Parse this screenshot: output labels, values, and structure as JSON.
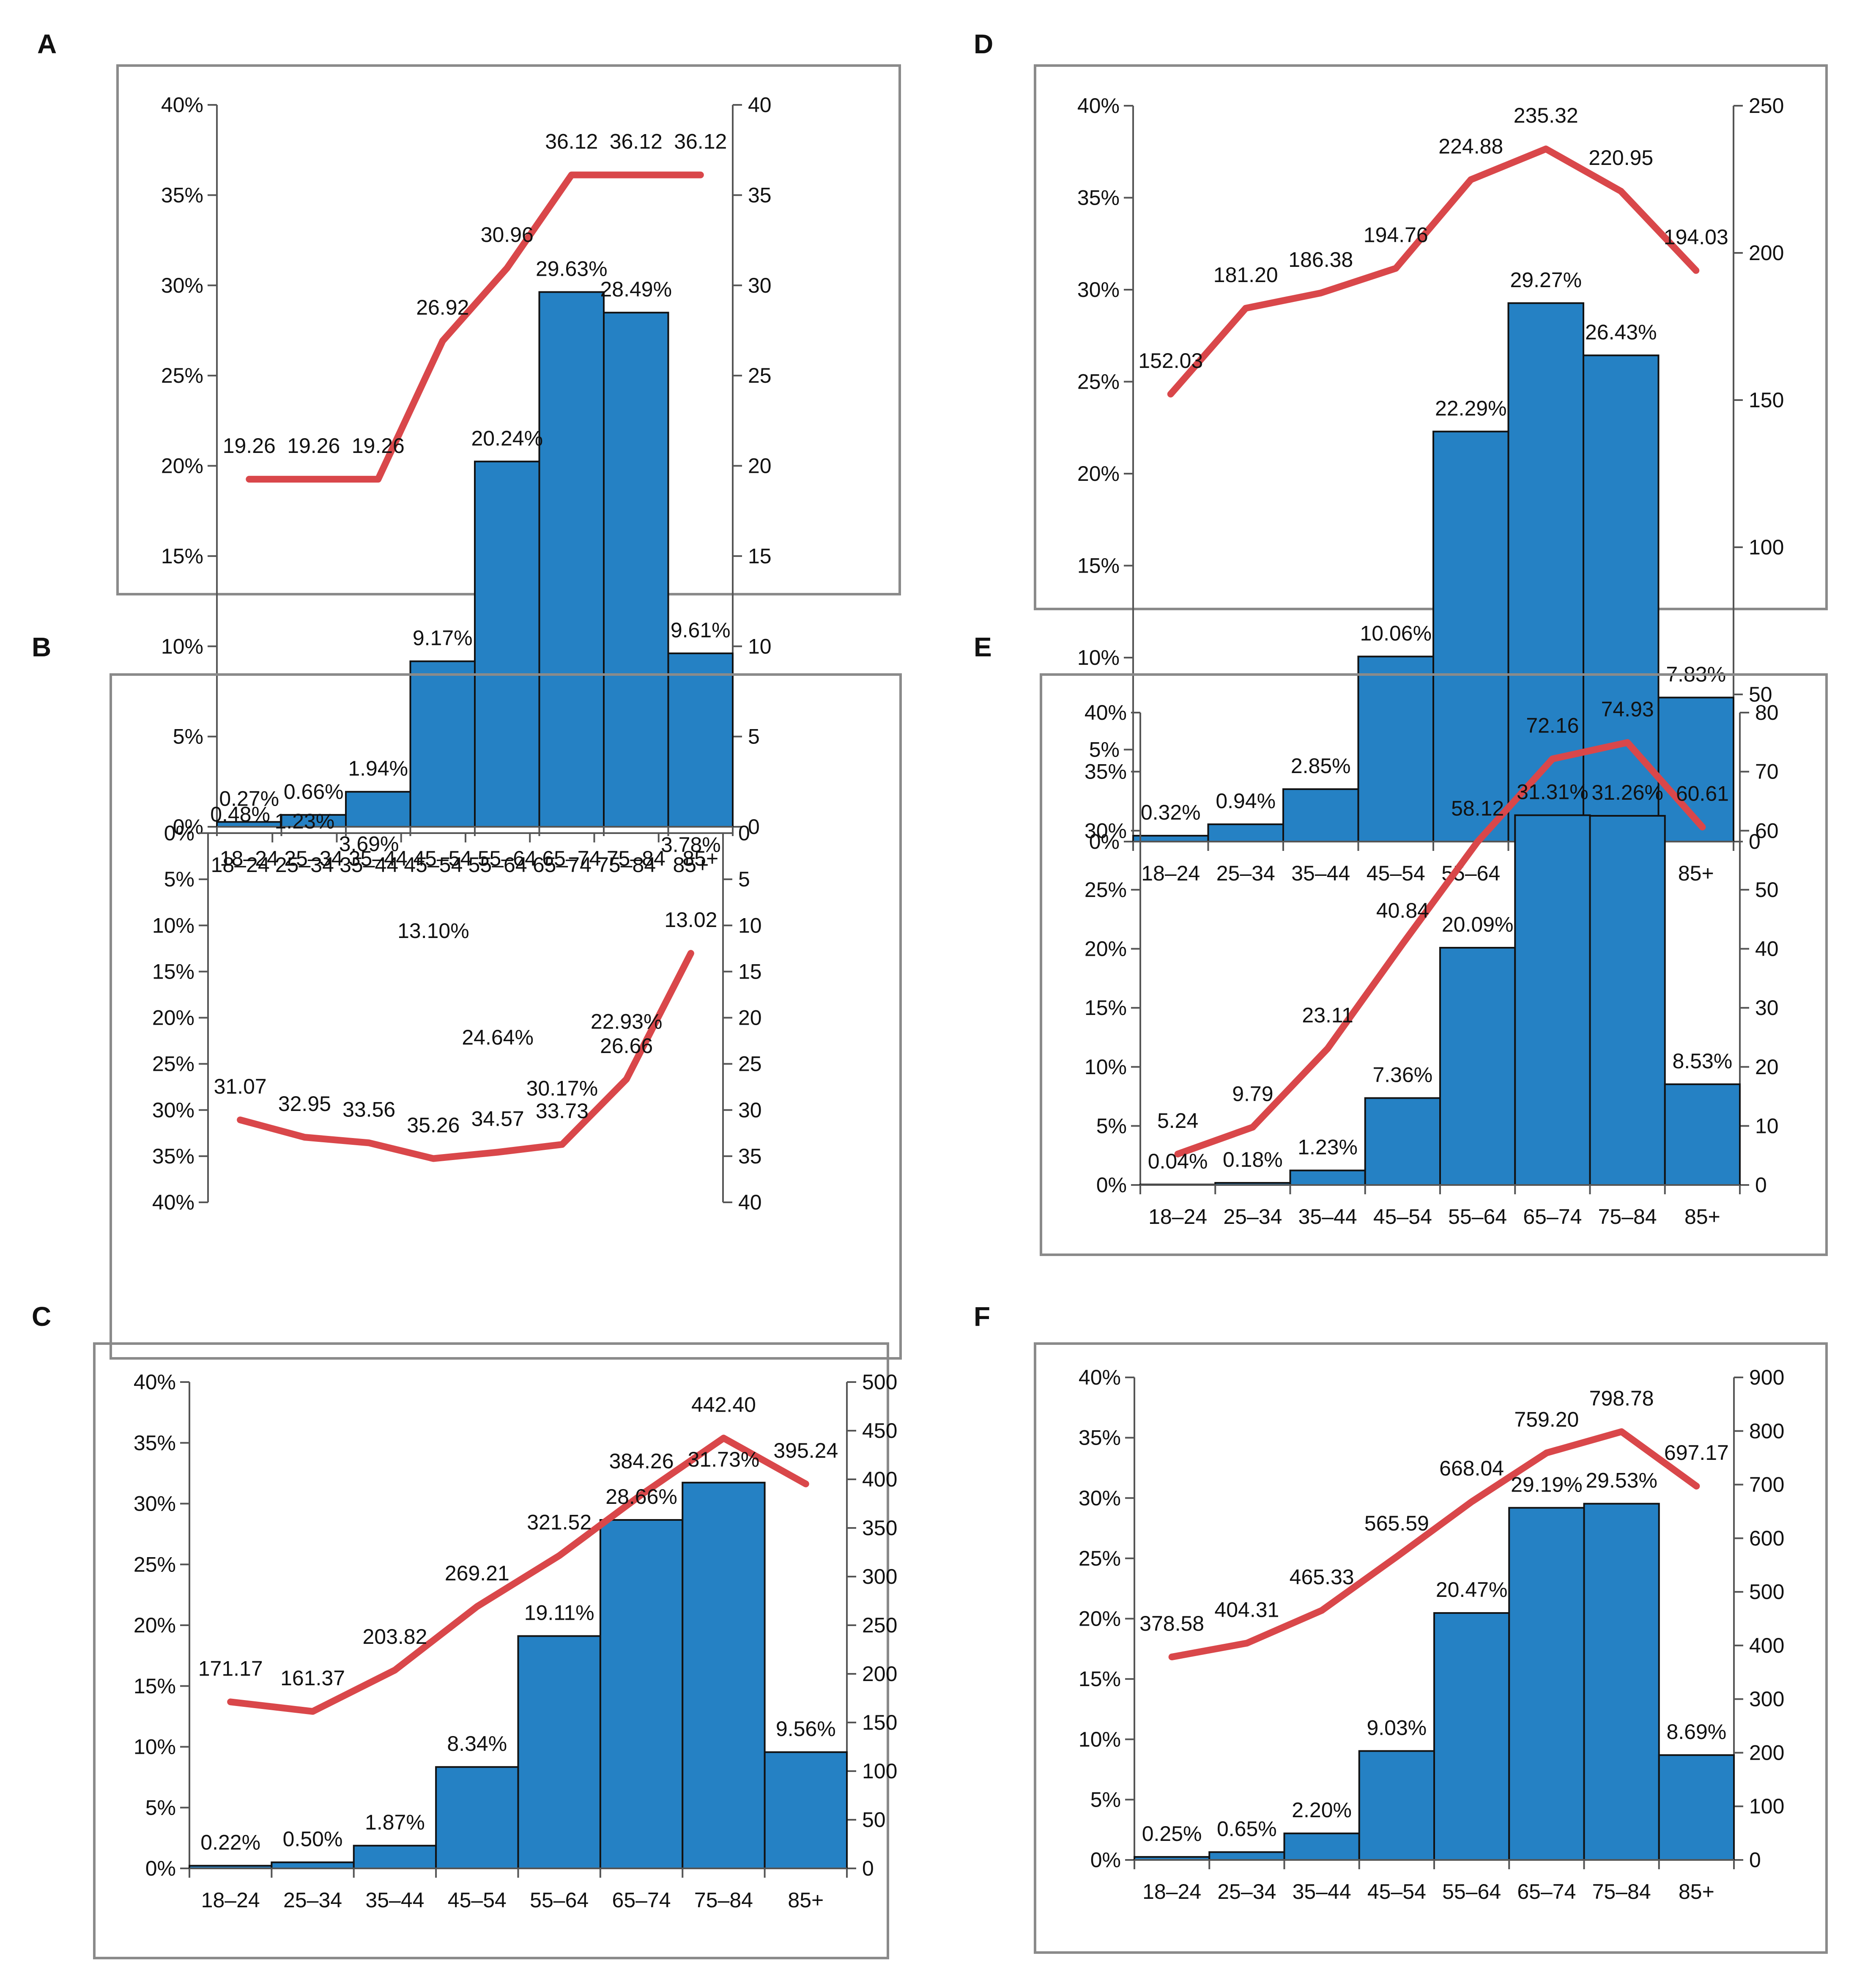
{
  "colors": {
    "bar": "#2581c4",
    "bar_stroke": "#111111",
    "line": "#d9474a",
    "frame": "#8a8a8a",
    "axis": "#555555",
    "text": "#111111"
  },
  "chart_data": [
    {
      "panel": "A",
      "type": "bar",
      "categories": [
        "18–24",
        "25–34",
        "35–44",
        "45–54",
        "55–64",
        "65–74",
        "75–84",
        "85+"
      ],
      "series": [
        {
          "name": "share",
          "axis": "left",
          "type": "bar",
          "values": [
            0.27,
            0.66,
            1.94,
            9.17,
            20.24,
            29.63,
            28.49,
            9.61
          ],
          "labels": [
            "0.27%",
            "0.66%",
            "1.94%",
            "9.17%",
            "20.24%",
            "29.63%",
            "28.49%",
            "9.61%"
          ]
        },
        {
          "name": "rate",
          "axis": "right",
          "type": "line",
          "values": [
            19.26,
            19.26,
            19.26,
            26.92,
            30.96,
            36.12,
            36.12,
            36.12
          ],
          "labels": [
            "19.26",
            "19.26",
            "19.26",
            "26.92",
            "30.96",
            "36.12",
            "36.12",
            "36.12"
          ]
        }
      ],
      "y_left": {
        "ylim": [
          0,
          40
        ],
        "ticks": [
          "0%",
          "5%",
          "10%",
          "15%",
          "20%",
          "25%",
          "30%",
          "35%",
          "40%"
        ]
      },
      "y_right": {
        "ylim": [
          0,
          40
        ],
        "ticks": [
          "0",
          "5",
          "10",
          "15",
          "20",
          "25",
          "30",
          "35",
          "40"
        ]
      },
      "grid": false
    },
    {
      "panel": "B",
      "type": "bar",
      "categories": [
        "18–24",
        "25–34",
        "35–44",
        "45–54",
        "55–64",
        "65–74",
        "75–84",
        "85+"
      ],
      "series": [
        {
          "name": "share",
          "axis": "left",
          "type": "bar",
          "values": [
            0.48,
            1.23,
            3.69,
            13.1,
            24.64,
            30.17,
            22.93,
            3.78
          ],
          "labels": [
            "0.48%",
            "1.23%",
            "3.69%",
            "13.10%",
            "24.64%",
            "30.17%",
            "22.93%",
            "3.78%"
          ]
        },
        {
          "name": "rate",
          "axis": "right",
          "type": "line",
          "values": [
            31.07,
            32.95,
            33.56,
            35.26,
            34.57,
            33.73,
            26.66,
            13.02
          ],
          "labels": [
            "31.07",
            "32.95",
            "33.56",
            "35.26",
            "34.57",
            "33.73",
            "26.66",
            "13.02"
          ]
        }
      ],
      "y_left": {
        "ylim": [
          0,
          40
        ],
        "ticks": [
          "0%",
          "5%",
          "10%",
          "15%",
          "20%",
          "25%",
          "30%",
          "35%",
          "40%"
        ]
      },
      "y_right": {
        "ylim": [
          0,
          40
        ],
        "ticks": [
          "0",
          "5",
          "10",
          "15",
          "20",
          "25",
          "30",
          "35",
          "40"
        ]
      },
      "grid": false
    },
    {
      "panel": "C",
      "type": "bar",
      "categories": [
        "18–24",
        "25–34",
        "35–44",
        "45–54",
        "55–64",
        "65–74",
        "75–84",
        "85+"
      ],
      "series": [
        {
          "name": "share",
          "axis": "left",
          "type": "bar",
          "values": [
            0.22,
            0.5,
            1.87,
            8.34,
            19.11,
            28.66,
            31.73,
            9.56
          ],
          "labels": [
            "0.22%",
            "0.50%",
            "1.87%",
            "8.34%",
            "19.11%",
            "28.66%",
            "31.73%",
            "9.56%"
          ]
        },
        {
          "name": "rate",
          "axis": "right",
          "type": "line",
          "values": [
            171.17,
            161.37,
            203.82,
            269.21,
            321.52,
            384.26,
            442.4,
            395.24
          ],
          "labels": [
            "171.17",
            "161.37",
            "203.82",
            "269.21",
            "321.52",
            "384.26",
            "442.40",
            "395.24"
          ]
        }
      ],
      "y_left": {
        "ylim": [
          0,
          40
        ],
        "ticks": [
          "0%",
          "5%",
          "10%",
          "15%",
          "20%",
          "25%",
          "30%",
          "35%",
          "40%"
        ]
      },
      "y_right": {
        "ylim": [
          0,
          500
        ],
        "ticks": [
          "0",
          "50",
          "100",
          "150",
          "200",
          "250",
          "300",
          "350",
          "400",
          "450",
          "500"
        ]
      },
      "grid": false
    },
    {
      "panel": "D",
      "type": "bar",
      "categories": [
        "18–24",
        "25–34",
        "35–44",
        "45–54",
        "55–64",
        "65–74",
        "75–84",
        "85+"
      ],
      "series": [
        {
          "name": "share",
          "axis": "left",
          "type": "bar",
          "values": [
            0.32,
            0.94,
            2.85,
            10.06,
            22.29,
            29.27,
            26.43,
            7.83
          ],
          "labels": [
            "0.32%",
            "0.94%",
            "2.85%",
            "10.06%",
            "22.29%",
            "29.27%",
            "26.43%",
            "7.83%"
          ]
        },
        {
          "name": "rate",
          "axis": "right",
          "type": "line",
          "values": [
            152.03,
            181.2,
            186.38,
            194.76,
            224.88,
            235.32,
            220.95,
            194.03
          ],
          "labels": [
            "152.03",
            "181.20",
            "186.38",
            "194.76",
            "224.88",
            "235.32",
            "220.95",
            "194.03"
          ]
        }
      ],
      "y_left": {
        "ylim": [
          0,
          40
        ],
        "ticks": [
          "0%",
          "5%",
          "10%",
          "15%",
          "20%",
          "25%",
          "30%",
          "35%",
          "40%"
        ]
      },
      "y_right": {
        "ylim": [
          0,
          250
        ],
        "ticks": [
          "0",
          "50",
          "100",
          "150",
          "200",
          "250"
        ]
      },
      "grid": false
    },
    {
      "panel": "E",
      "type": "bar",
      "categories": [
        "18–24",
        "25–34",
        "35–44",
        "45–54",
        "55–64",
        "65–74",
        "75–84",
        "85+"
      ],
      "series": [
        {
          "name": "share",
          "axis": "left",
          "type": "bar",
          "values": [
            0.04,
            0.18,
            1.23,
            7.36,
            20.09,
            31.31,
            31.26,
            8.53
          ],
          "labels": [
            "0.04%",
            "0.18%",
            "1.23%",
            "7.36%",
            "20.09%",
            "31.31%",
            "31.26%",
            "8.53%"
          ]
        },
        {
          "name": "rate",
          "axis": "right",
          "type": "line",
          "values": [
            5.24,
            9.79,
            23.11,
            40.84,
            58.12,
            72.16,
            74.93,
            60.61
          ],
          "labels": [
            "5.24",
            "9.79",
            "23.11",
            "40.84",
            "58.12",
            "72.16",
            "74.93",
            "60.61"
          ]
        }
      ],
      "y_left": {
        "ylim": [
          0,
          40
        ],
        "ticks": [
          "0%",
          "5%",
          "10%",
          "15%",
          "20%",
          "25%",
          "30%",
          "35%",
          "40%"
        ]
      },
      "y_right": {
        "ylim": [
          0,
          80
        ],
        "ticks": [
          "0",
          "10",
          "20",
          "30",
          "40",
          "50",
          "60",
          "70",
          "80"
        ]
      },
      "grid": false
    },
    {
      "panel": "F",
      "type": "bar",
      "categories": [
        "18–24",
        "25–34",
        "35–44",
        "45–54",
        "55–64",
        "65–74",
        "75–84",
        "85+"
      ],
      "series": [
        {
          "name": "share",
          "axis": "left",
          "type": "bar",
          "values": [
            0.25,
            0.65,
            2.2,
            9.03,
            20.47,
            29.19,
            29.53,
            8.69
          ],
          "labels": [
            "0.25%",
            "0.65%",
            "2.20%",
            "9.03%",
            "20.47%",
            "29.19%",
            "29.53%",
            "8.69%"
          ]
        },
        {
          "name": "rate",
          "axis": "right",
          "type": "line",
          "values": [
            378.58,
            404.31,
            465.33,
            565.59,
            668.04,
            759.2,
            798.78,
            697.17
          ],
          "labels": [
            "378.58",
            "404.31",
            "465.33",
            "565.59",
            "668.04",
            "759.20",
            "798.78",
            "697.17"
          ]
        }
      ],
      "y_left": {
        "ylim": [
          0,
          40
        ],
        "ticks": [
          "0%",
          "5%",
          "10%",
          "15%",
          "20%",
          "25%",
          "30%",
          "35%",
          "40%"
        ]
      },
      "y_right": {
        "ylim": [
          0,
          900
        ],
        "ticks": [
          "0",
          "100",
          "200",
          "300",
          "400",
          "500",
          "600",
          "700",
          "800",
          "900"
        ]
      },
      "grid": false
    }
  ]
}
